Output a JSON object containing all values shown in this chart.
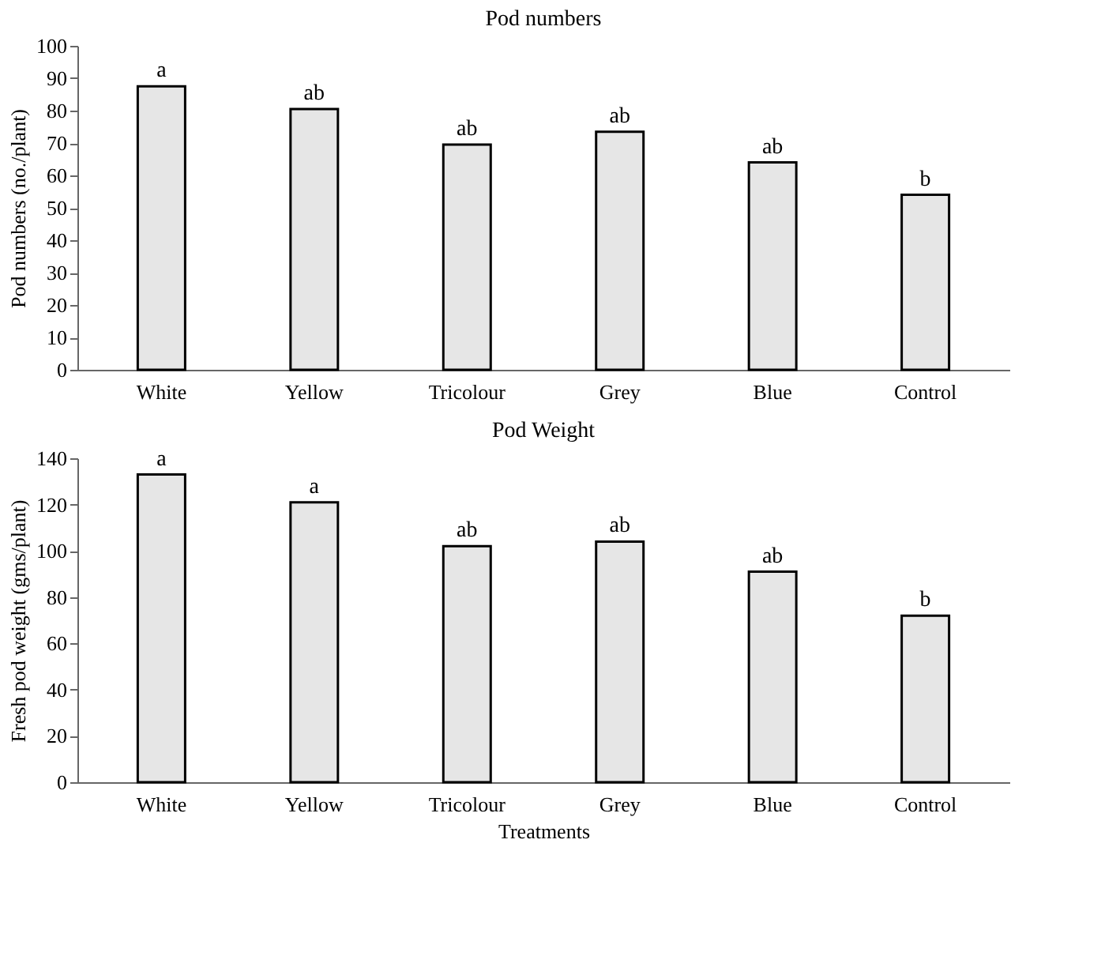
{
  "chart_data": [
    {
      "type": "bar",
      "title": "Pod numbers",
      "ylabel": "Pod numbers (no./plant)",
      "categories": [
        "White",
        "Yellow",
        "Tricolour",
        "Grey",
        "Blue",
        "Control"
      ],
      "series": [
        {
          "color": "#e6e6e6",
          "values": [
            87.5,
            80.5,
            69.5,
            73.5,
            64,
            54
          ],
          "value_labels": [
            "a",
            "ab",
            "ab",
            "ab",
            "ab",
            "b"
          ]
        }
      ],
      "ylim": [
        0,
        100
      ],
      "yticks": [
        0,
        10,
        20,
        30,
        40,
        50,
        60,
        70,
        80,
        90,
        100
      ],
      "grid": false
    },
    {
      "type": "bar",
      "title": "Pod Weight",
      "xlabel": "Treatments",
      "ylabel": "Fresh pod weight (gms/plant)",
      "categories": [
        "White",
        "Yellow",
        "Tricolour",
        "Grey",
        "Blue",
        "Control"
      ],
      "series": [
        {
          "color": "#e6e6e6",
          "values": [
            133,
            121,
            102,
            104,
            91,
            72
          ],
          "value_labels": [
            "a",
            "a",
            "ab",
            "ab",
            "ab",
            "b"
          ]
        }
      ],
      "ylim": [
        0,
        140
      ],
      "yticks": [
        0,
        20,
        40,
        60,
        80,
        100,
        120,
        140
      ],
      "grid": false
    }
  ]
}
